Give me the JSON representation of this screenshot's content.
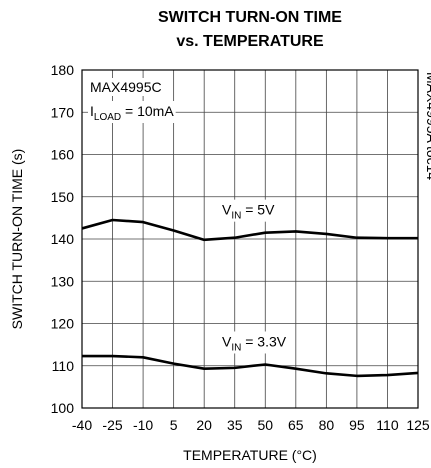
{
  "chart_data": {
    "type": "line",
    "title": [
      "SWITCH TURN-ON TIME",
      "vs. TEMPERATURE"
    ],
    "xlabel": "TEMPERATURE (°C)",
    "ylabel": "SWITCH TURN-ON TIME (s)",
    "x": [
      -40,
      -25,
      -10,
      5,
      20,
      35,
      50,
      65,
      80,
      95,
      110,
      125
    ],
    "series": [
      {
        "label": {
          "main": "V",
          "sub": "IN",
          "rest": " = 5V"
        },
        "color": "#000000",
        "values": [
          142.5,
          144.5,
          144,
          142,
          139.8,
          140.3,
          141.5,
          141.8,
          141.2,
          140.3,
          140.2,
          140.2
        ]
      },
      {
        "label": {
          "main": "V",
          "sub": "IN",
          "rest": " = 3.3V"
        },
        "color": "#000000",
        "values": [
          112.3,
          112.3,
          112,
          110.5,
          109.3,
          109.5,
          110.3,
          109.3,
          108.2,
          107.6,
          107.8,
          108.3
        ]
      }
    ],
    "annotations": {
      "part": "MAX4995C",
      "load": {
        "main": "I",
        "sub": "LOAD",
        "rest": " = 10mA"
      },
      "code": "MAX4995A toc14"
    },
    "xlim": [
      -40,
      125
    ],
    "xticks": [
      -40,
      -25,
      -10,
      5,
      20,
      35,
      50,
      65,
      80,
      95,
      110,
      125
    ],
    "ylim": [
      100,
      180
    ],
    "yticks": [
      100,
      110,
      120,
      130,
      140,
      150,
      160,
      170,
      180
    ],
    "grid": true
  }
}
